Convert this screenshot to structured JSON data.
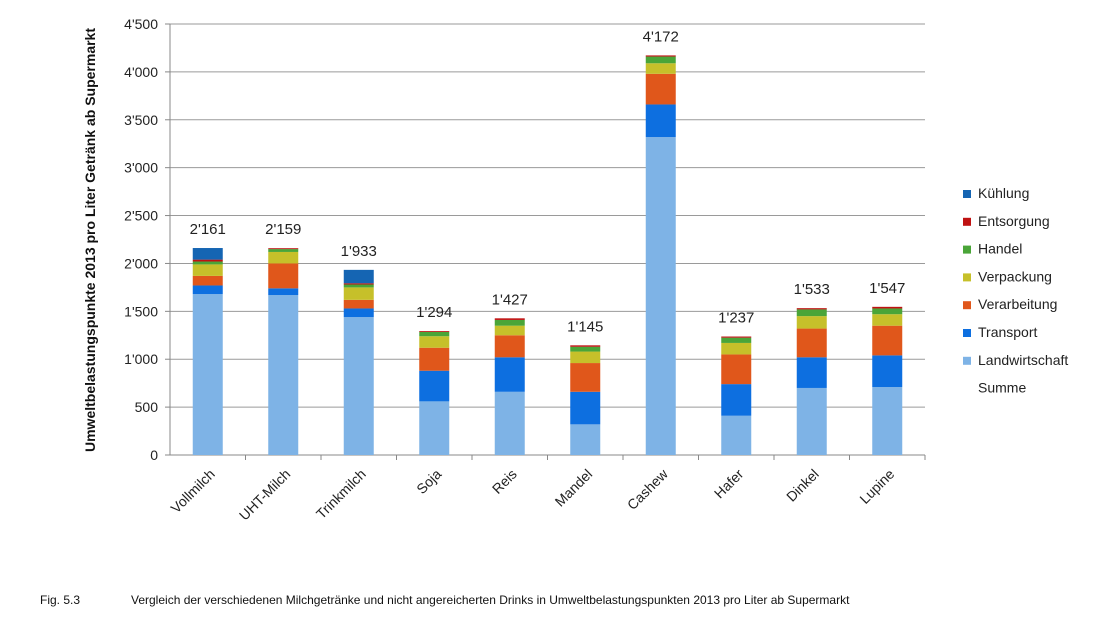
{
  "chart_data": {
    "type": "bar",
    "stacked": true,
    "ylabel": "Umweltbelastungspunkte 2013 pro Liter Getränk ab Supermarkt",
    "ylim": [
      0,
      4500
    ],
    "yticks": [
      0,
      500,
      1000,
      1500,
      2000,
      2500,
      3000,
      3500,
      4000,
      4500
    ],
    "ytick_labels": [
      "0",
      "500",
      "1'000",
      "1'500",
      "2'000",
      "2'500",
      "3'000",
      "3'500",
      "4'000",
      "4'500"
    ],
    "grid": "horizontal",
    "legend_position": "right",
    "categories": [
      "Vollmilch",
      "UHT-Milch",
      "Trinkmilch",
      "Soja",
      "Reis",
      "Mandel",
      "Cashew",
      "Hafer",
      "Dinkel",
      "Lupine"
    ],
    "series": [
      {
        "name": "Landwirtschaft",
        "color": "#7eb3e6",
        "values": [
          1680,
          1670,
          1440,
          560,
          660,
          320,
          3320,
          410,
          700,
          710
        ]
      },
      {
        "name": "Transport",
        "color": "#0d6fe0",
        "values": [
          90,
          70,
          90,
          320,
          360,
          340,
          340,
          330,
          320,
          330
        ]
      },
      {
        "name": "Verarbeitung",
        "color": "#e0571b",
        "values": [
          100,
          260,
          90,
          240,
          230,
          300,
          320,
          310,
          300,
          310
        ]
      },
      {
        "name": "Verpackung",
        "color": "#c6c02a",
        "values": [
          120,
          120,
          130,
          120,
          100,
          120,
          110,
          120,
          130,
          120
        ]
      },
      {
        "name": "Handel",
        "color": "#4aa538",
        "values": [
          30,
          30,
          30,
          45,
          60,
          50,
          70,
          55,
          70,
          60
        ]
      },
      {
        "name": "Entsorgung",
        "color": "#bf1212",
        "values": [
          20,
          9,
          13,
          9,
          17,
          15,
          12,
          12,
          13,
          17
        ]
      },
      {
        "name": "Kühlung",
        "color": "#1565b3",
        "values": [
          121,
          0,
          140,
          0,
          0,
          0,
          0,
          0,
          0,
          0
        ]
      }
    ],
    "totals": [
      2161,
      2159,
      1933,
      1294,
      1427,
      1145,
      4172,
      1237,
      1533,
      1547
    ],
    "total_labels": [
      "2'161",
      "2'159",
      "1'933",
      "1'294",
      "1'427",
      "1'145",
      "4'172",
      "1'237",
      "1'533",
      "1'547"
    ],
    "legend_order": [
      "Kühlung",
      "Entsorgung",
      "Handel",
      "Verpackung",
      "Verarbeitung",
      "Transport",
      "Landwirtschaft"
    ],
    "legend_extra": "Summe"
  },
  "caption": {
    "figure_number": "Fig. 5.3",
    "text": "Vergleich der verschiedenen Milchgetränke und nicht angereicherten Drinks in Umweltbelastungspunkten 2013 pro Liter ab Supermarkt"
  }
}
